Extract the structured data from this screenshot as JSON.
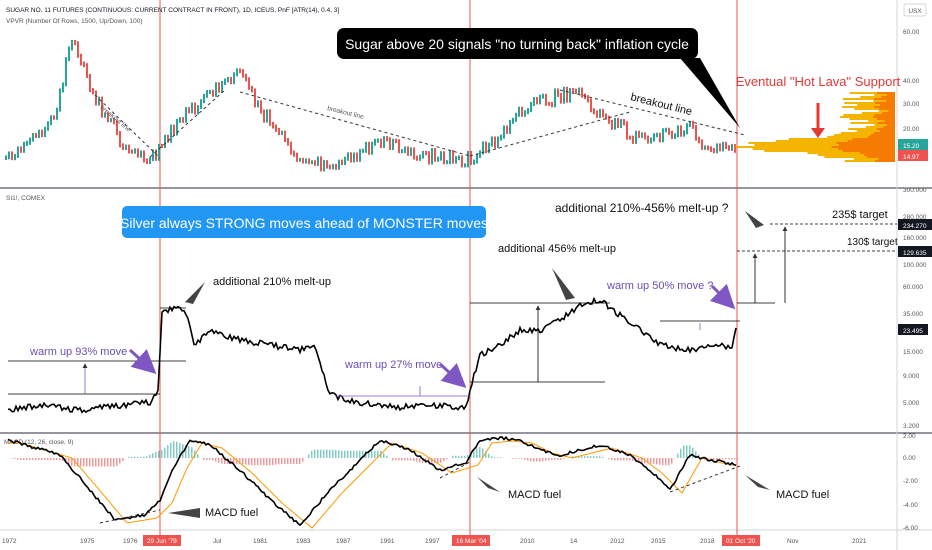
{
  "header": {
    "sugar_symbol": "SUGAR NO. 11 FUTURES (CONTINUOUS: CURRENT CONTRACT IN FRONT), 1D, ICEUS, PnF [ATR(14), 0.4, 3]",
    "vpvr": "VPVR (Number Of Rows, 1500, Up/Down, 100)",
    "silver_symbol": "SI1!, COMEX",
    "macd": "MACD (12, 26, close, 9)",
    "currency": "USX"
  },
  "annotations": {
    "sugar_callout": "Sugar above 20 signals \"no turning back\" inflation cycle",
    "silver_callout": "Silver always STRONG moves ahead of MONSTER moves",
    "hot_lava": "Eventual \"Hot Lava\" Support",
    "breakout1": "breakout line",
    "breakout2": "breakout line",
    "breakout3": "breakout line",
    "add210": "additional 210% melt-up",
    "add456": "additional 456% melt-up",
    "add_range": "additional 210%-456% melt-up ?",
    "warm93": "warm up 93% move",
    "warm27": "warm up 27% move",
    "warm50": "warm up 50% move ?",
    "target235": "235$ target",
    "target130": "130$ target",
    "macd_fuel": "MACD fuel"
  },
  "axes": {
    "sugar_ticks": [
      "60.00",
      "40.00",
      "30.00",
      "20.00"
    ],
    "sugar_price_a": "15.20",
    "sugar_price_b": "14.97",
    "silver_ticks": [
      "280.000",
      "160.000",
      "100.000",
      "60.000",
      "35.000",
      "15.000",
      "9.000",
      "5.000",
      "3.200"
    ],
    "silver_top_tick": "300.000",
    "silver_label_target_high": "234.270",
    "silver_label_target_low": "129.635",
    "silver_label_price": "23.495",
    "macd_ticks": [
      "2.00",
      "0.00",
      "-2.00",
      "-4.00",
      "-6.00"
    ],
    "x_labels": [
      "1972",
      "1975",
      "1976",
      "Jul",
      "1981",
      "1983",
      "1987",
      "1991",
      "1997",
      "2010",
      "14",
      "2012",
      "2015",
      "2018",
      "Nov",
      "2021"
    ],
    "x_highlight_1": "29 Jun '79",
    "x_highlight_2": "16 Mar '04",
    "x_highlight_3": "01 Oct '20"
  },
  "chart_data": {
    "type": "line",
    "panes": [
      "Sugar No. 11 (PnF)",
      "Silver SI1!",
      "MACD"
    ],
    "silver_levels": {
      "warm_up_1_base": 6.2,
      "warm_up_1_top": 12,
      "melt_up_1_top": 37,
      "warm_up_2_base": 6.2,
      "warm_up_2_top": 8,
      "melt_up_2_top": 44,
      "warm_up_3_base": 19,
      "warm_up_3_top": 29,
      "target_low": 129.635,
      "target_high": 234.27,
      "last_price": 23.495
    },
    "sugar_levels": {
      "last_a": 15.2,
      "last_b": 14.97
    },
    "highlight_dates": [
      "29 Jun '79",
      "16 Mar '04",
      "01 Oct '20"
    ],
    "colors": {
      "up": "#26a69a",
      "down": "#ef5350",
      "highlight": "#ef5350",
      "callout_sugar": "#000000",
      "callout_silver": "#2196f3",
      "arrows": "#7e57c2",
      "hot_lava": "#e53935"
    }
  }
}
